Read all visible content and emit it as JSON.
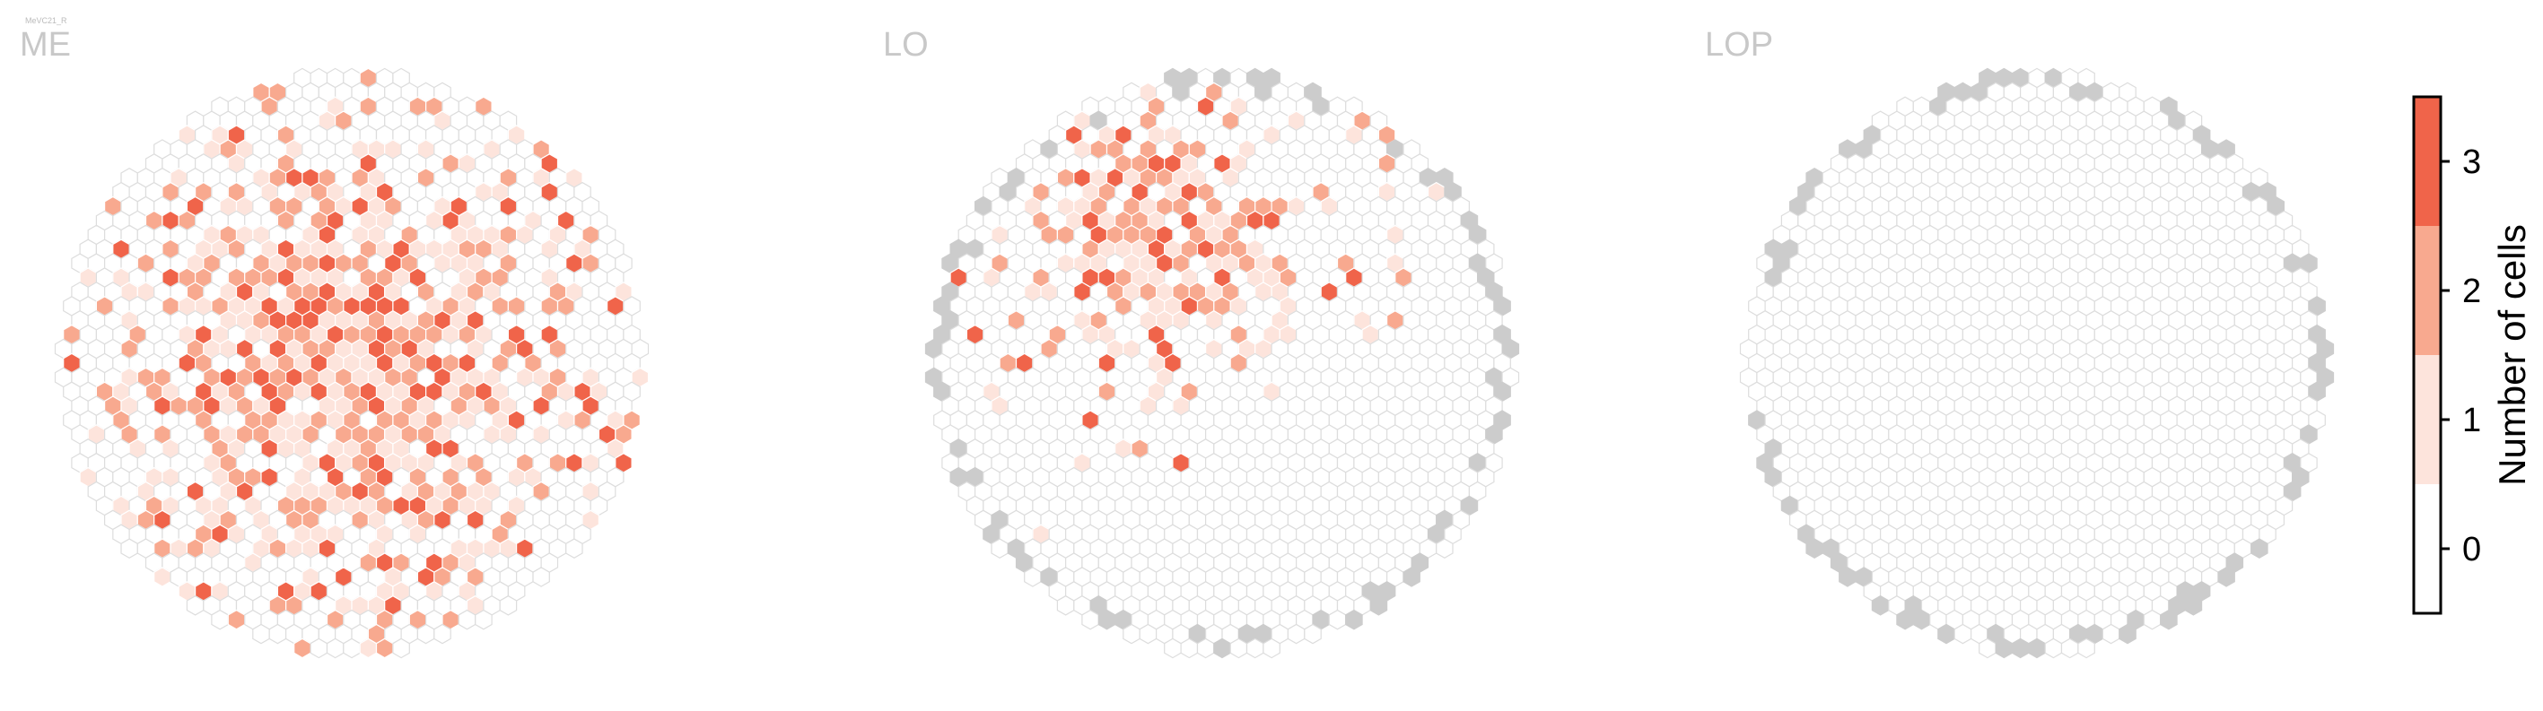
{
  "figure": {
    "cell_type": "MeVC21_R"
  },
  "chart_data": {
    "type": "heatmap",
    "grid": "hexagonal",
    "panels": [
      {
        "name": "ME",
        "grid_radius": 20,
        "fill_seed": 7,
        "hotspot": [
          0.5,
          0.5
        ],
        "density": 0.95,
        "spread": 0.55,
        "edge_gray": false
      },
      {
        "name": "LO",
        "grid_radius": 20,
        "fill_seed": 19,
        "hotspot": [
          0.38,
          0.28
        ],
        "density": 0.8,
        "spread": 0.35,
        "edge_gray": true
      },
      {
        "name": "LOP",
        "grid_radius": 20,
        "fill_seed": 31,
        "hotspot": [
          0.5,
          0.5
        ],
        "density": 0.0,
        "spread": 0.1,
        "edge_gray": true
      }
    ],
    "colorbar": {
      "label": "Number of cells",
      "ticks": [
        "0",
        "1",
        "2",
        "3"
      ],
      "colors": [
        "#ffffff",
        "#fde4dc",
        "#f8a98f",
        "#f0644a"
      ],
      "outline": "#000000"
    },
    "empty_cell_stroke": "#dddddd",
    "missing_cell_color": "#cccccc"
  }
}
